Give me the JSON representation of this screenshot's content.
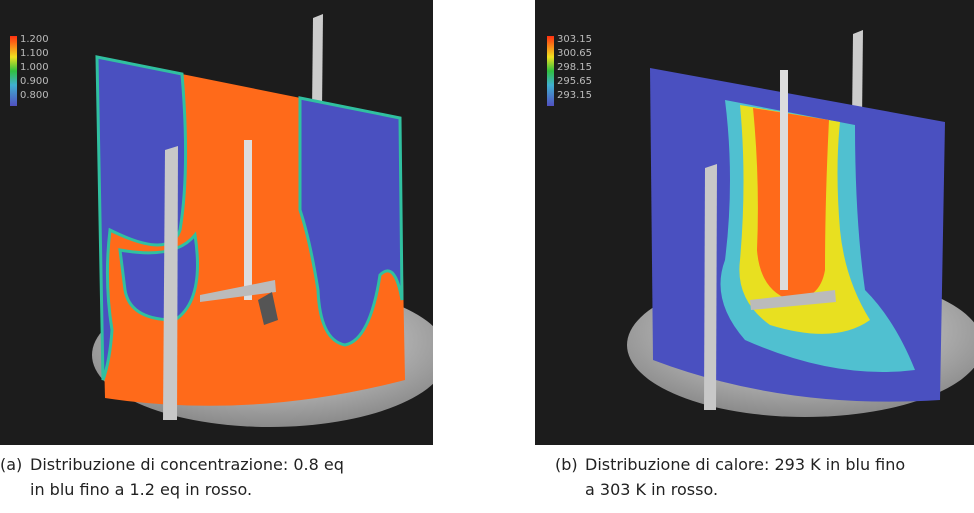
{
  "figures": [
    {
      "label": "(a)",
      "caption_lines": [
        "Distribuzione di concentrazione: 0.8 eq",
        "in blu fino a 1.2 eq in rosso."
      ],
      "legend": [
        "1.200",
        "1.100",
        "1.000",
        "0.900",
        "0.800"
      ]
    },
    {
      "label": "(b)",
      "caption_lines": [
        "Distribuzione di calore: 293 K in blu fino",
        "a 303 K in rosso."
      ],
      "legend": [
        "303.15",
        "300.65",
        "298.15",
        "295.65",
        "293.15"
      ]
    }
  ]
}
